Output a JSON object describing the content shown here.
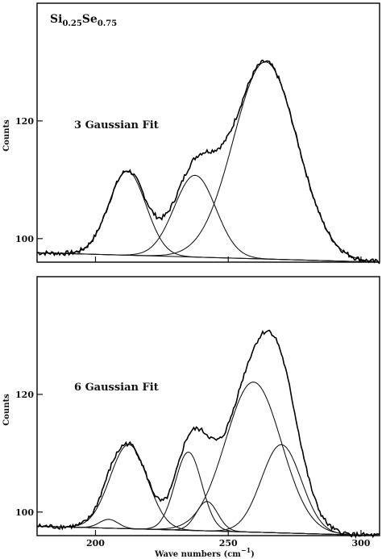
{
  "figure": {
    "title_main": "Si",
    "title_sub1": "0.25",
    "title_mid": "Se",
    "title_sub2": "0.75",
    "xlabel": "Wave numbers (cm",
    "xlabel_sup": "−1",
    "xlabel_close": ")"
  },
  "chart_data": [
    {
      "type": "line",
      "title": "3 Gaussian Fit",
      "ylabel": "Counts",
      "xlim": [
        178,
        307
      ],
      "ylim": [
        96,
        140
      ],
      "x_ticks": [
        200,
        250,
        300
      ],
      "x_tick_labels_shown": false,
      "y_ticks": [
        100,
        120
      ],
      "y_tick_labels": [
        "100",
        "120"
      ],
      "baseline": [
        [
          178,
          97.6
        ],
        [
          307,
          96.0
        ]
      ],
      "series": [
        {
          "role": "measured spectrum",
          "shape": "sum-of-components"
        },
        {
          "role": "gaussian component",
          "center": 212,
          "height": 14.3,
          "width": 7.0
        },
        {
          "role": "gaussian component",
          "center": 237.5,
          "height": 13.9,
          "width": 7.8
        },
        {
          "role": "gaussian component",
          "center": 264,
          "height": 33.5,
          "width": 12.0
        }
      ]
    },
    {
      "type": "line",
      "title": "6 Gaussian Fit",
      "ylabel": "Counts",
      "xlim": [
        178,
        307
      ],
      "ylim": [
        96,
        140
      ],
      "x_ticks": [
        200,
        250,
        300
      ],
      "x_tick_labels": [
        "200",
        "250",
        "300"
      ],
      "y_ticks": [
        100,
        120
      ],
      "y_tick_labels": [
        "100",
        "120"
      ],
      "baseline": [
        [
          178,
          97.6
        ],
        [
          307,
          96.0
        ]
      ],
      "series": [
        {
          "role": "measured spectrum",
          "shape": "sum-of-components"
        },
        {
          "role": "gaussian component",
          "center": 205,
          "height": 1.5,
          "width": 3.5
        },
        {
          "role": "gaussian component",
          "center": 212.5,
          "height": 14.3,
          "width": 7.0
        },
        {
          "role": "gaussian component",
          "center": 235,
          "height": 13.3,
          "width": 5.0
        },
        {
          "role": "gaussian component",
          "center": 242,
          "height": 5.0,
          "width": 4.0
        },
        {
          "role": "gaussian component",
          "center": 259.5,
          "height": 25.5,
          "width": 10.5
        },
        {
          "role": "gaussian component",
          "center": 270,
          "height": 15.0,
          "width": 7.5
        }
      ]
    }
  ]
}
